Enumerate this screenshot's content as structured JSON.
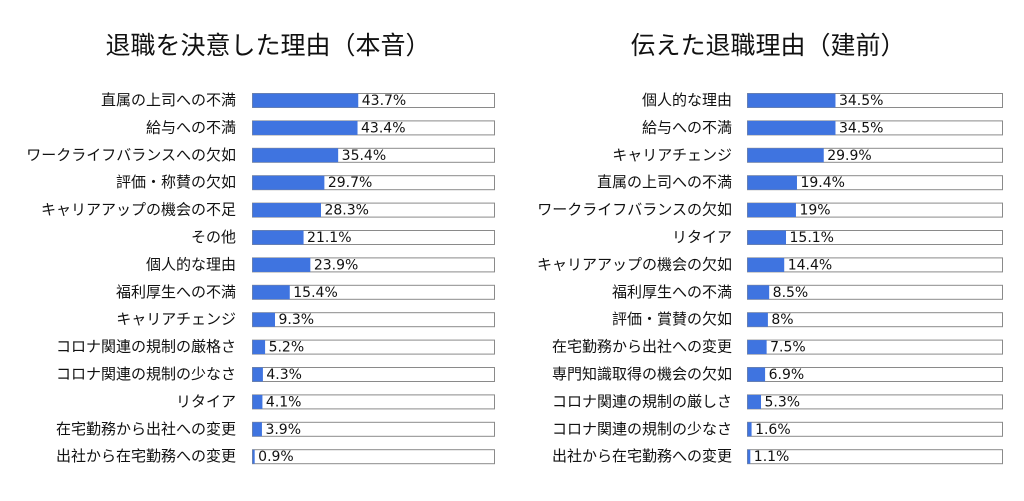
{
  "chart_data": [
    {
      "type": "bar",
      "orientation": "horizontal",
      "title": "退職を決意した理由（本音）",
      "categories": [
        "直属の上司への不満",
        "給与への不満",
        "ワークライフバランスへの欠如",
        "評価・称賛の欠如",
        "キャリアアップの機会の不足",
        "その他",
        "個人的な理由",
        "福利厚生への不満",
        "キャリアチェンジ",
        "コロナ関連の規制の厳格さ",
        "コロナ関連の規制の少なさ",
        "リタイア",
        "在宅勤務から出社への変更",
        "出社から在宅勤務への変更"
      ],
      "values": [
        43.7,
        43.4,
        35.4,
        29.7,
        28.3,
        21.1,
        23.9,
        15.4,
        9.3,
        5.2,
        4.3,
        4.1,
        3.9,
        0.9
      ],
      "value_labels": [
        "43.7%",
        "43.4%",
        "35.4%",
        "29.7%",
        "28.3%",
        "21.1%",
        "23.9%",
        "15.4%",
        "9.3%",
        "5.2%",
        "4.3%",
        "4.1%",
        "3.9%",
        "0.9%"
      ],
      "xlim": [
        0,
        100
      ],
      "grid": false,
      "bar_color": "#3f74e0",
      "track_border_color": "#8a8a8a"
    },
    {
      "type": "bar",
      "orientation": "horizontal",
      "title": "伝えた退職理由（建前）",
      "categories": [
        "個人的な理由",
        "給与への不満",
        "キャリアチェンジ",
        "直属の上司への不満",
        "ワークライフバランスの欠如",
        "リタイア",
        "キャリアアップの機会の欠如",
        "福利厚生への不満",
        "評価・賞賛の欠如",
        "在宅勤務から出社への変更",
        "専門知識取得の機会の欠如",
        "コロナ関連の規制の厳しさ",
        "コロナ関連の規制の少なさ",
        "出社から在宅勤務への変更"
      ],
      "values": [
        34.5,
        34.5,
        29.9,
        19.4,
        19,
        15.1,
        14.4,
        8.5,
        8,
        7.5,
        6.9,
        5.3,
        1.6,
        1.1
      ],
      "value_labels": [
        "34.5%",
        "34.5%",
        "29.9%",
        "19.4%",
        "19%",
        "15.1%",
        "14.4%",
        "8.5%",
        "8%",
        "7.5%",
        "6.9%",
        "5.3%",
        "1.6%",
        "1.1%"
      ],
      "xlim": [
        0,
        100
      ],
      "grid": false,
      "bar_color": "#3f74e0",
      "track_border_color": "#8a8a8a"
    }
  ]
}
